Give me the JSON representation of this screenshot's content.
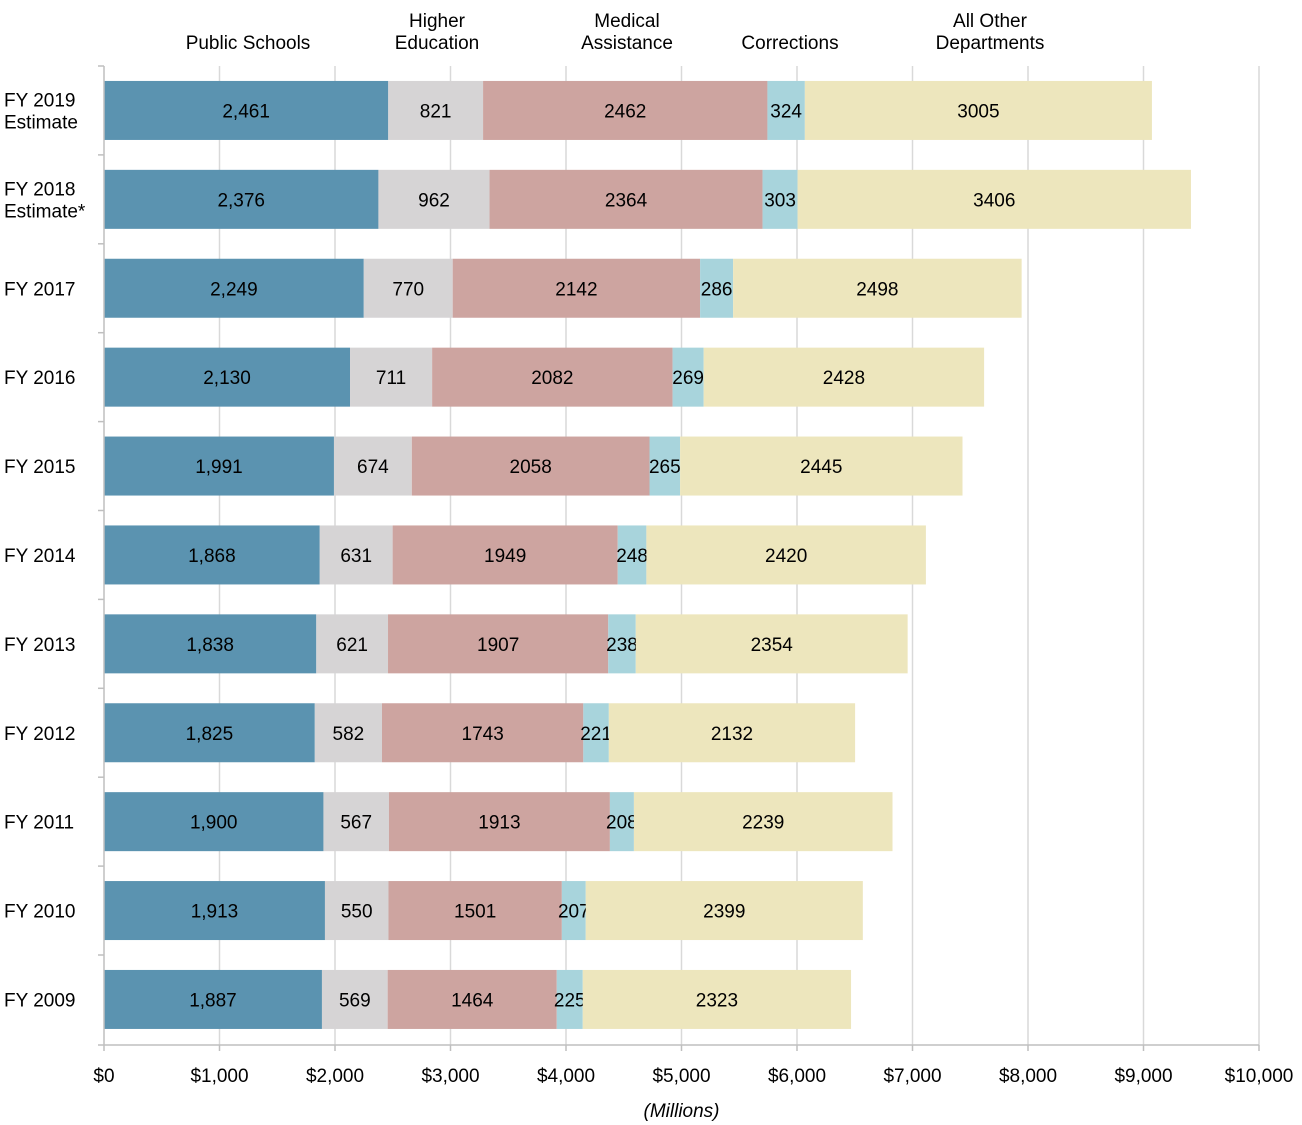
{
  "chart_data": {
    "type": "bar",
    "orientation": "horizontal",
    "stacked": true,
    "categories": [
      [
        "FY 2019",
        "Estimate"
      ],
      [
        "FY 2018",
        "Estimate*"
      ],
      [
        "FY 2017"
      ],
      [
        "FY 2016"
      ],
      [
        "FY 2015"
      ],
      [
        "FY 2014"
      ],
      [
        "FY 2013"
      ],
      [
        "FY 2012"
      ],
      [
        "FY 2011"
      ],
      [
        "FY 2010"
      ],
      [
        "FY 2009"
      ]
    ],
    "series": [
      {
        "name": [
          "Public Schools"
        ],
        "color": "#5b93b0",
        "values": [
          2461,
          2376,
          2249,
          2130,
          1991,
          1868,
          1838,
          1825,
          1900,
          1913,
          1887
        ],
        "labels": [
          "2,461",
          "2,376",
          "2,249",
          "2,130",
          "1,991",
          "1,868",
          "1,838",
          "1,825",
          "1,900",
          "1,913",
          "1,887"
        ]
      },
      {
        "name": [
          "Higher",
          "Education"
        ],
        "color": "#d6d4d5",
        "values": [
          821,
          962,
          770,
          711,
          674,
          631,
          621,
          582,
          567,
          550,
          569
        ],
        "labels": [
          "821",
          "962",
          "770",
          "711",
          "674",
          "631",
          "621",
          "582",
          "567",
          "550",
          "569"
        ]
      },
      {
        "name": [
          "Medical",
          "Assistance"
        ],
        "color": "#cda4a0",
        "values": [
          2462,
          2364,
          2142,
          2082,
          2058,
          1949,
          1907,
          1743,
          1913,
          1501,
          1464
        ],
        "labels": [
          "2462",
          "2364",
          "2142",
          "2082",
          "2058",
          "1949",
          "1907",
          "1743",
          "1913",
          "1501",
          "1464"
        ]
      },
      {
        "name": [
          "Corrections"
        ],
        "color": "#a8d4dc",
        "values": [
          324,
          303,
          286,
          269,
          265,
          248,
          238,
          221,
          208,
          207,
          225
        ],
        "labels": [
          "324",
          "303",
          "286",
          "269",
          "265",
          "248",
          "238",
          "221",
          "208",
          "207",
          "225"
        ]
      },
      {
        "name": [
          "All Other",
          "Departments"
        ],
        "color": "#ede6bd",
        "values": [
          3005,
          3406,
          2498,
          2428,
          2445,
          2420,
          2354,
          2132,
          2239,
          2399,
          2323
        ],
        "labels": [
          "3005",
          "3406",
          "2498",
          "2428",
          "2445",
          "2420",
          "2354",
          "2132",
          "2239",
          "2399",
          "2323"
        ]
      }
    ],
    "xlim": [
      0,
      10000
    ],
    "xticks": [
      0,
      1000,
      2000,
      3000,
      4000,
      5000,
      6000,
      7000,
      8000,
      9000,
      10000
    ],
    "xtick_labels": [
      "$0",
      "$1,000",
      "$2,000",
      "$3,000",
      "$4,000",
      "$5,000",
      "$6,000",
      "$7,000",
      "$8,000",
      "$9,000",
      "$10,000"
    ],
    "xlabel": "(Millions)",
    "title": "",
    "grid": "vertical",
    "legend": "top"
  }
}
